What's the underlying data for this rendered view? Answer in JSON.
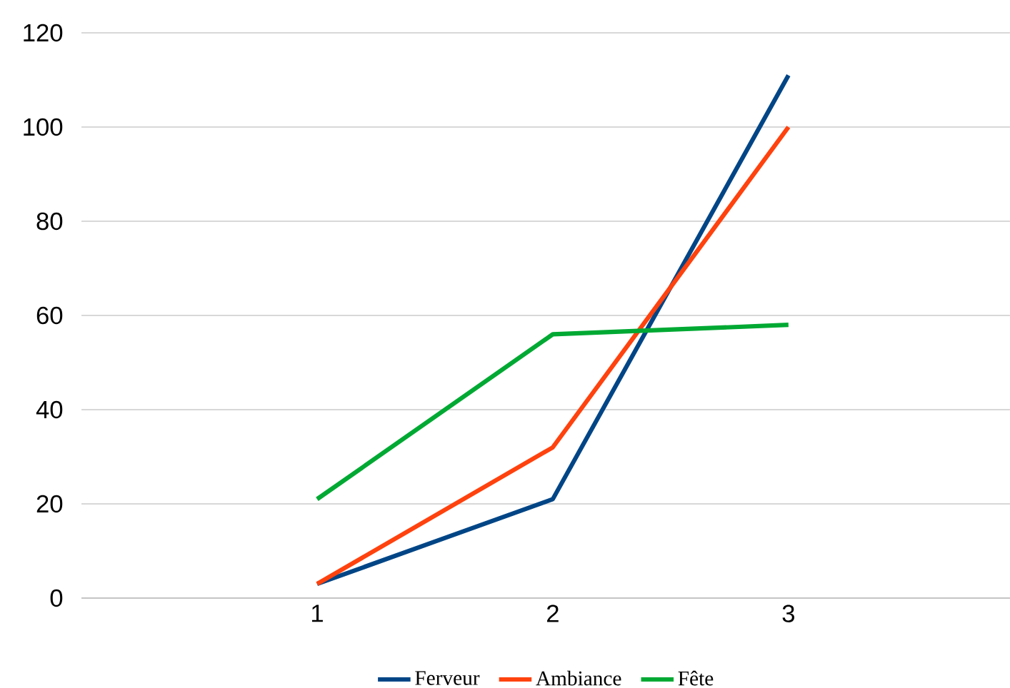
{
  "chart_data": {
    "type": "line",
    "categories": [
      "1",
      "2",
      "3"
    ],
    "series": [
      {
        "name": "Ferveur",
        "color": "#004586",
        "values": [
          3,
          21,
          111
        ]
      },
      {
        "name": "Ambiance",
        "color": "#ff420e",
        "values": [
          3,
          32,
          100
        ]
      },
      {
        "name": "Fête",
        "color": "#00a933",
        "values": [
          21,
          56,
          58
        ]
      }
    ],
    "ylim": [
      0,
      120
    ],
    "yticks": [
      0,
      20,
      40,
      60,
      80,
      100,
      120
    ],
    "grid": "y",
    "legend": "bottom",
    "marker": "none",
    "line_style": "solid"
  }
}
